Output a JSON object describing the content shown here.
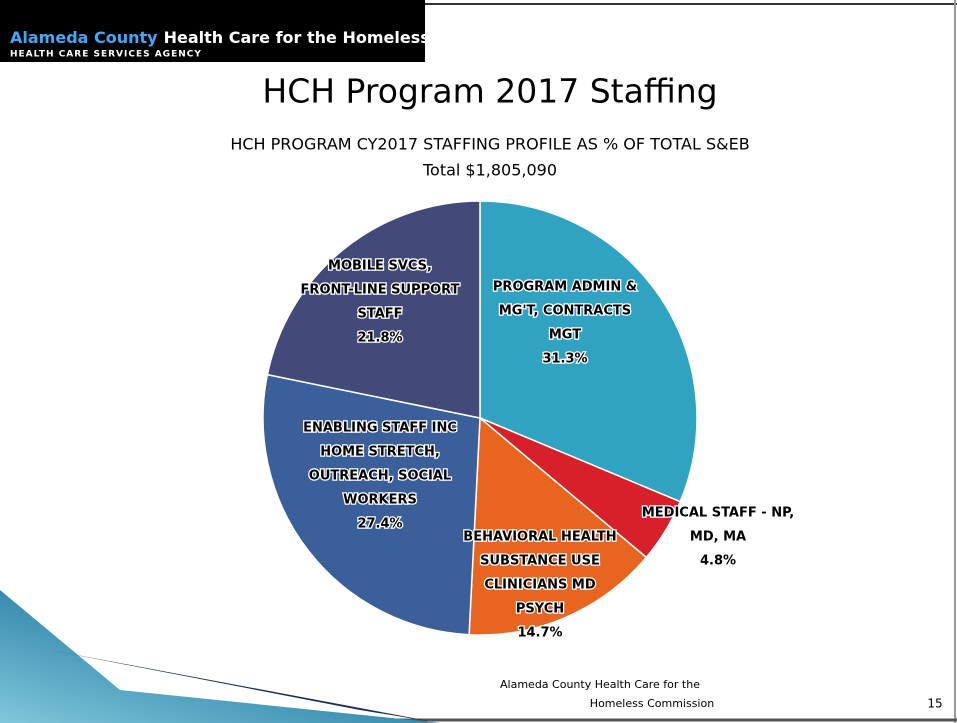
{
  "header": {
    "org_highlight": "Alameda County",
    "org_rest": "Health Care for the Homeless",
    "agency": "HEALTH CARE SERVICES AGENCY"
  },
  "slide_title": "HCH Program 2017 Staffing",
  "chart_data": {
    "type": "pie",
    "title": "HCH PROGRAM CY2017 STAFFING PROFILE AS % OF TOTAL S&EB",
    "subtitle": "Total $1,805,090",
    "categories": [
      [
        "PROGRAM ADMIN &",
        "MG'T, CONTRACTS",
        "MGT"
      ],
      [
        "MEDICAL STAFF - NP,",
        "MD, MA"
      ],
      [
        "BEHAVIORAL HEALTH",
        "SUBSTANCE USE",
        "CLINICIANS MD",
        "PSYCH"
      ],
      [
        "ENABLING STAFF INC",
        "HOME STRETCH,",
        "OUTREACH, SOCIAL",
        "WORKERS"
      ],
      [
        "MOBILE SVCS,",
        "FRONT-LINE SUPPORT",
        "STAFF"
      ]
    ],
    "values": [
      31.3,
      4.8,
      14.7,
      27.4,
      21.8
    ],
    "value_labels": [
      "31.3%",
      "4.8%",
      "14.7%",
      "27.4%",
      "21.8%"
    ],
    "colors": [
      "#2fa3c1",
      "#d8202b",
      "#e8651f",
      "#3a5f9b",
      "#434a79"
    ]
  },
  "footer": {
    "line1": "Alameda County Health Care for the",
    "line2": "Homeless Commission",
    "page": 15
  }
}
